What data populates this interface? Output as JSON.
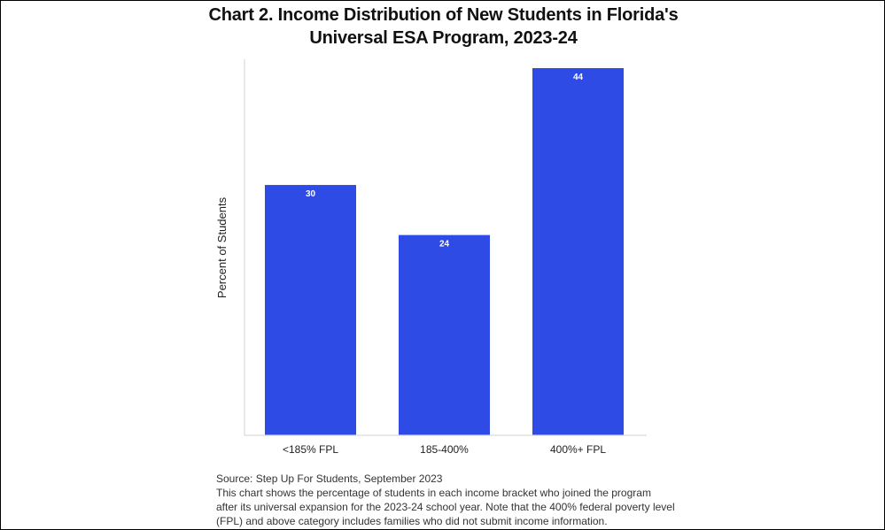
{
  "title_line1": "Chart 2. Income Distribution of New Students in Florida's",
  "title_line2": "Universal ESA Program, 2023-24",
  "source": "Source: Step Up For Students, September 2023",
  "note_lines": [
    "This chart shows the percentage of students in each income bracket who joined the program",
    "after its universal expansion for the 2023-24 school year. Note that the 400% federal poverty level",
    "(FPL) and above category includes families who did not submit income information."
  ],
  "chart_data": {
    "type": "bar",
    "title": "Chart 2. Income Distribution of New Students in Florida's Universal ESA Program, 2023-24",
    "xlabel": "",
    "ylabel": "Percent of Students",
    "categories": [
      "<185% FPL",
      "185-400%",
      "400%+ FPL"
    ],
    "values": [
      30,
      24,
      44
    ],
    "data_labels": [
      "30",
      "24",
      "44"
    ],
    "ylim": [
      0,
      44
    ],
    "grid": false,
    "legend": "none",
    "bar_color": "#2e4be6",
    "data_label_color": "#ffffff",
    "axis_color": "#d9d9d9"
  }
}
